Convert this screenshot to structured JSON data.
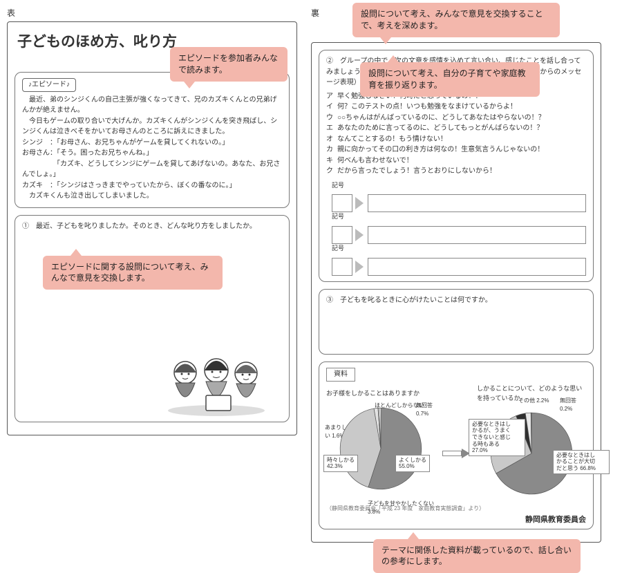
{
  "front": {
    "label": "表",
    "title": "子どものほめ方、叱り方",
    "episode_badge": "♪エピソード♪",
    "episode_paragraphs": [
      "　最近、弟のシンジくんの自己主張が強くなってきて、兄のカズキくんとの兄弟げんかが絶えません。",
      "　今日もゲームの取り合いで大げんか。カズキくんがシンジくんを突き飛ばし、シンジくんは泣きべそをかいてお母さんのところに訴えにきました。",
      "シンジ　：「お母さん、お兄ちゃんがゲームを貸してくれないの。」",
      "お母さん：「そう。困ったお兄ちゃんね。」",
      "　　　　　「カズキ、どうしてシンジにゲームを貸してあげないの。あなた、お兄さんでしょ。」",
      "カズキ　：「シンジはさっきまでやっていたから、ぼくの番なのに。」",
      "　カズキくんも泣き出してしまいました。"
    ],
    "q1": "①　最近、子どもを叱りましたか。そのとき、どんな叱り方をしましたか。",
    "callout_a": "エピソードを参加者みんなで読みます。",
    "callout_b": "エピソードに関する設問について考え、みんなで意見を交換します。"
  },
  "back": {
    "label": "裏",
    "callout_top": "設問について考え、みんなで意見を交換することで、考えを深めます。",
    "q2_intro": "②　グループの中で、次の文章を感情を込めて言い合い、感じたことを話し合ってみましょう。また、子どもの心を傷つけずに叱る（プラスの表現、私からのメッセージ表現）文章に変えてみましょう。",
    "items": [
      {
        "mk": "ア",
        "txt": "早く勉強しなさい！何時だと思っているの！？"
      },
      {
        "mk": "イ",
        "txt": "何？このテストの点！いつも勉強をなまけているからよ！"
      },
      {
        "mk": "ウ",
        "txt": "○○ちゃんはがんばっているのに、どうしてあなたはやらないの！？"
      },
      {
        "mk": "エ",
        "txt": "あなたのために言ってるのに、どうしてもっとがんばらないの！？"
      },
      {
        "mk": "オ",
        "txt": "なんてことするの！もう情けない！"
      },
      {
        "mk": "カ",
        "txt": "親に向かってその口の利き方は何なの！生意気言うんじゃないの！"
      },
      {
        "mk": "キ",
        "txt": "何べんも言わせないで！"
      },
      {
        "mk": "ク",
        "txt": "だから言ったでしょう！言うとおりにしないから！"
      }
    ],
    "sym_label": "記号",
    "q3": "③　子どもを叱るときに心がけたいことは何ですか。",
    "callout_mid": "設問について考え、自分の子育てや家庭教育を振り返ります。",
    "resource_label": "資料",
    "chart1": {
      "title": "お子様をしかることはありますか",
      "type": "pie",
      "slices": [
        {
          "label": "よくしかる",
          "value": 55.0,
          "color": "#8a8a8a"
        },
        {
          "label": "時々しかる",
          "value": 42.3,
          "color": "#c9c9c9"
        },
        {
          "label": "あまりしからない",
          "value": 1.6,
          "color": "#e2e2e2"
        },
        {
          "label": "ほとんどしからない",
          "value": 0.4,
          "color": "#f0f0f0"
        },
        {
          "label": "無回答",
          "value": 0.7,
          "color": "#ffffff"
        }
      ],
      "key_boxes": {
        "tokidoki": "時々しかる\n42.3%",
        "yoku": "よくしかる\n55.0%"
      },
      "small_labels": {
        "amari": "あまりしからない 1.6%",
        "hotondo": "ほとんどしからない 0.4%",
        "mukaito": "無回答 0.7%",
        "amayaka": "子どもを甘やかしたくない 3.8%"
      }
    },
    "chart2": {
      "title": "しかることについて、どのような思いを持っているか",
      "type": "pie",
      "slices": [
        {
          "label": "必要なときはしかることが大切だと思う",
          "value": 66.8,
          "color": "#8a8a8a"
        },
        {
          "label": "必要なときはしかるが、うまくできないと感じる時もある",
          "value": 27.0,
          "color": "#c9c9c9"
        },
        {
          "label": "子どもを甘やかしたくない",
          "value": 3.8,
          "color": "#2f2f2f"
        },
        {
          "label": "その他",
          "value": 2.2,
          "color": "#e8e8e8"
        },
        {
          "label": "無回答",
          "value": 0.2,
          "color": "#ffffff"
        }
      ],
      "key_boxes": {
        "umaku": "必要なときはし\nかるが、うまく\nできないと感じ\nる時もある\n27.0%",
        "taisetsu": "必要なときはし\nかることが大切\nだと思う 66.8%"
      },
      "small_labels": {
        "sonota": "その他 2.2%",
        "mukaito": "無回答 0.2%"
      }
    },
    "source": "（静岡県教育委員会「平成 23 年度　家庭教育実態調査」より）",
    "board": "静岡県教育委員会",
    "callout_bottom": "テーマに関係した資料が載っているので、話し合いの参考にします。"
  }
}
